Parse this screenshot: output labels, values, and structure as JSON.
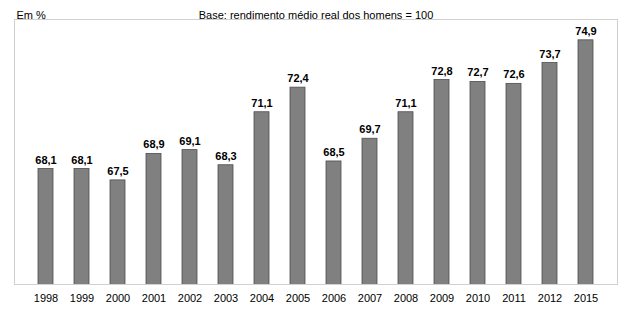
{
  "chart_data": {
    "type": "bar",
    "title": "Base: rendimento médio real dos homens = 100",
    "y_label": "Em %",
    "categories": [
      "1998",
      "1999",
      "2000",
      "2001",
      "2002",
      "2003",
      "2004",
      "2005",
      "2006",
      "2007",
      "2008",
      "2009",
      "2010",
      "2011",
      "2012",
      "2015"
    ],
    "values": [
      68.1,
      68.1,
      67.5,
      68.9,
      69.1,
      68.3,
      71.1,
      72.4,
      68.5,
      69.7,
      71.1,
      72.8,
      72.7,
      72.6,
      73.7,
      74.9
    ],
    "value_labels": [
      "68,1",
      "68,1",
      "67,5",
      "68,9",
      "69,1",
      "68,3",
      "71,1",
      "72,4",
      "68,5",
      "69,7",
      "71,1",
      "72,8",
      "72,7",
      "72,6",
      "73,7",
      "74,9"
    ],
    "color": "#808080",
    "ylim": [
      62,
      76
    ],
    "yticks": [],
    "grid": false,
    "data_labels": true,
    "tick_labels": "x"
  }
}
